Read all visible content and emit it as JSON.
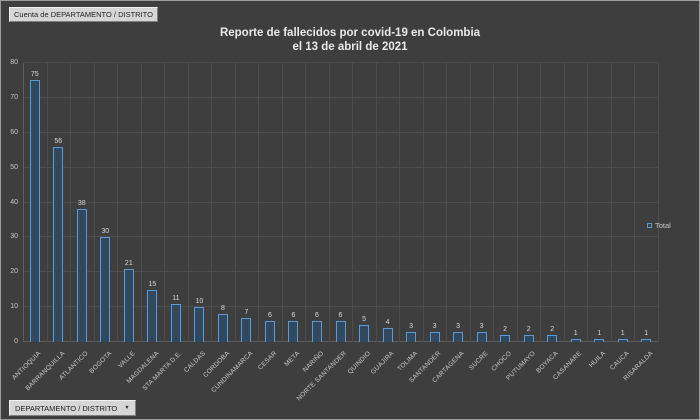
{
  "field_button": {
    "label": "Cuenta de DEPARTAMENTO / DISTRITO"
  },
  "title": {
    "line1": "Reporte de fallecidos por covid-19 en Colombia",
    "line2": "el 13 de abril de 2021"
  },
  "legend": {
    "label": "Total"
  },
  "axis_field_button": {
    "label": "DEPARTAMENTO / DISTRITO",
    "dropdown_icon": "▼"
  },
  "colors": {
    "background": "#3e3e3e",
    "gridline": "#4d4d4d",
    "bar_fill": "#31485f",
    "bar_border": "#5b9bd5",
    "text": "#c8c8c8",
    "title_text": "#e9e9e9",
    "button_bg": "#d6d6d6"
  },
  "chart_data": {
    "type": "bar",
    "title": "Reporte de fallecidos por covid-19 en Colombia el 13 de abril de 2021",
    "series_name": "Total",
    "categories": [
      "ANTIOQUIA",
      "BARRANQUILLA",
      "ATLANTICO",
      "BOGOTA",
      "VALLE",
      "MAGDALENA",
      "STA MARTA D.E.",
      "CALDAS",
      "CORDOBA",
      "CUNDINAMARCA",
      "CESAR",
      "META",
      "NARIÑO",
      "NORTE SANTANDER",
      "QUINDIO",
      "GUAJIRA",
      "TOLIMA",
      "SANTANDER",
      "CARTAGENA",
      "SUCRE",
      "CHOCO",
      "PUTUMAYO",
      "BOYACA",
      "CASANARE",
      "HUILA",
      "CAUCA",
      "RISARALDA"
    ],
    "values": [
      75,
      56,
      38,
      30,
      21,
      15,
      11,
      10,
      8,
      7,
      6,
      6,
      6,
      6,
      5,
      4,
      3,
      3,
      3,
      3,
      2,
      2,
      2,
      1,
      1,
      1,
      1
    ],
    "xlabel": "",
    "ylabel": "",
    "ylim": [
      0,
      80
    ],
    "yticks": [
      0,
      10,
      20,
      30,
      40,
      50,
      60,
      70,
      80
    ],
    "grid": "horizontal-and-vertical",
    "legend_position": "right",
    "data_labels": true
  }
}
